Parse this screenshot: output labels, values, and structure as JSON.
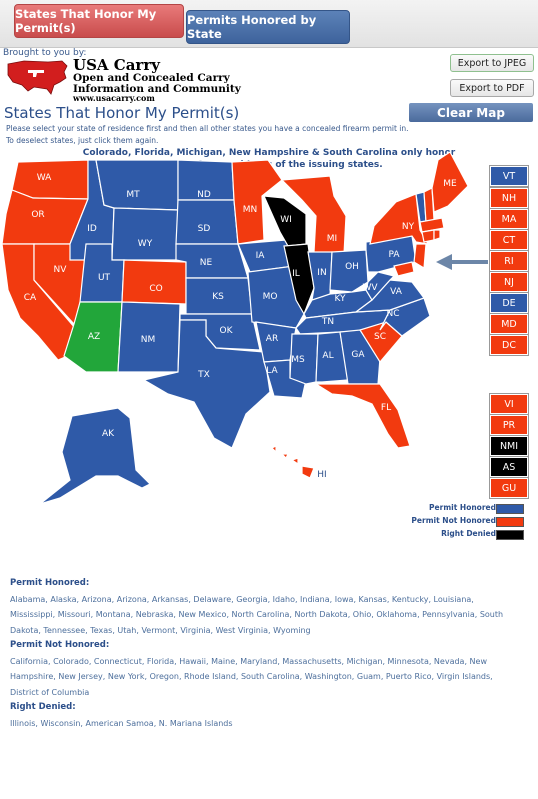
{
  "tabs": [
    {
      "label": "States That Honor My Permit(s)"
    },
    {
      "label": "Permits Honored by State"
    }
  ],
  "brought_by": "Brought to you by:",
  "logo": {
    "name": "USA Carry",
    "line1": "Open and Concealed Carry",
    "line2": "Information and Community",
    "url": "www.usacarry.com"
  },
  "buttons": {
    "export_jpeg": "Export to JPEG",
    "export_pdf": "Export to PDF",
    "clear_map": "Clear Map"
  },
  "page_title": "States That Honor My Permit(s)",
  "instructions": [
    "Please select your state of residence first and then all other states you have a concealed firearm permit in.",
    "To deselect states, just click them again."
  ],
  "note": [
    "Colorado, Florida, Michigan, New Hampshire & South Carolina only honor",
    "permits from residents of the issuing states."
  ],
  "colors": {
    "honored": "#2f5aa8",
    "not_honored": "#f23a0f",
    "denied": "#000000",
    "arizona_selected": "#22a63a"
  },
  "states_on_map": [
    {
      "code": "WA",
      "status": "not_honored"
    },
    {
      "code": "OR",
      "status": "not_honored"
    },
    {
      "code": "CA",
      "status": "not_honored"
    },
    {
      "code": "NV",
      "status": "not_honored"
    },
    {
      "code": "ID",
      "status": "honored"
    },
    {
      "code": "MT",
      "status": "honored"
    },
    {
      "code": "WY",
      "status": "honored"
    },
    {
      "code": "UT",
      "status": "honored"
    },
    {
      "code": "CO",
      "status": "not_honored"
    },
    {
      "code": "AZ",
      "status": "selected"
    },
    {
      "code": "NM",
      "status": "honored"
    },
    {
      "code": "ND",
      "status": "honored"
    },
    {
      "code": "SD",
      "status": "honored"
    },
    {
      "code": "NE",
      "status": "honored"
    },
    {
      "code": "KS",
      "status": "honored"
    },
    {
      "code": "OK",
      "status": "honored"
    },
    {
      "code": "TX",
      "status": "honored"
    },
    {
      "code": "MN",
      "status": "not_honored"
    },
    {
      "code": "IA",
      "status": "honored"
    },
    {
      "code": "MO",
      "status": "honored"
    },
    {
      "code": "AR",
      "status": "honored"
    },
    {
      "code": "LA",
      "status": "honored"
    },
    {
      "code": "WI",
      "status": "denied"
    },
    {
      "code": "IL",
      "status": "denied"
    },
    {
      "code": "MI",
      "status": "not_honored"
    },
    {
      "code": "IN",
      "status": "honored"
    },
    {
      "code": "OH",
      "status": "honored"
    },
    {
      "code": "KY",
      "status": "honored"
    },
    {
      "code": "TN",
      "status": "honored"
    },
    {
      "code": "MS",
      "status": "honored"
    },
    {
      "code": "AL",
      "status": "honored"
    },
    {
      "code": "GA",
      "status": "honored"
    },
    {
      "code": "FL",
      "status": "not_honored"
    },
    {
      "code": "SC",
      "status": "not_honored"
    },
    {
      "code": "NC",
      "status": "honored"
    },
    {
      "code": "VA",
      "status": "honored"
    },
    {
      "code": "WV",
      "status": "honored"
    },
    {
      "code": "PA",
      "status": "honored"
    },
    {
      "code": "NY",
      "status": "not_honored"
    },
    {
      "code": "ME",
      "status": "not_honored"
    },
    {
      "code": "AK",
      "status": "honored"
    },
    {
      "code": "HI",
      "status": "not_honored"
    }
  ],
  "side_boxes_east": [
    {
      "code": "VT",
      "status": "honored"
    },
    {
      "code": "NH",
      "status": "not_honored"
    },
    {
      "code": "MA",
      "status": "not_honored"
    },
    {
      "code": "CT",
      "status": "not_honored"
    },
    {
      "code": "RI",
      "status": "not_honored"
    },
    {
      "code": "NJ",
      "status": "not_honored"
    },
    {
      "code": "DE",
      "status": "honored"
    },
    {
      "code": "MD",
      "status": "not_honored"
    },
    {
      "code": "DC",
      "status": "not_honored"
    }
  ],
  "side_boxes_territories": [
    {
      "code": "VI",
      "status": "not_honored"
    },
    {
      "code": "PR",
      "status": "not_honored"
    },
    {
      "code": "NMI",
      "status": "denied"
    },
    {
      "code": "AS",
      "status": "denied"
    },
    {
      "code": "GU",
      "status": "not_honored"
    }
  ],
  "legend": [
    {
      "label": "Permit Honored",
      "status": "honored"
    },
    {
      "label": "Permit Not Honored",
      "status": "not_honored"
    },
    {
      "label": "Right Denied",
      "status": "denied"
    }
  ],
  "lists": {
    "honored_heading": "Permit Honored:",
    "honored_lines": [
      "Alabama, Alaska, Arizona, Arizona, Arkansas, Delaware, Georgia, Idaho, Indiana, Iowa, Kansas, Kentucky, Louisiana,",
      "Mississippi, Missouri, Montana, Nebraska, New Mexico, North Carolina, North Dakota, Ohio, Oklahoma, Pennsylvania, South",
      "Dakota, Tennessee, Texas, Utah, Vermont, Virginia, West Virginia, Wyoming"
    ],
    "not_honored_heading": "Permit Not Honored:",
    "not_honored_lines": [
      "California, Colorado, Connecticut, Florida, Hawaii, Maine, Maryland, Massachusetts, Michigan, Minnesota, Nevada, New",
      "Hampshire, New Jersey, New York, Oregon, Rhode Island, South Carolina, Washington, Guam, Puerto Rico, Virgin Islands,",
      "District of Columbia"
    ],
    "denied_heading": "Right Denied:",
    "denied_lines": [
      "Illinois, Wisconsin, American Samoa, N. Mariana Islands"
    ]
  }
}
